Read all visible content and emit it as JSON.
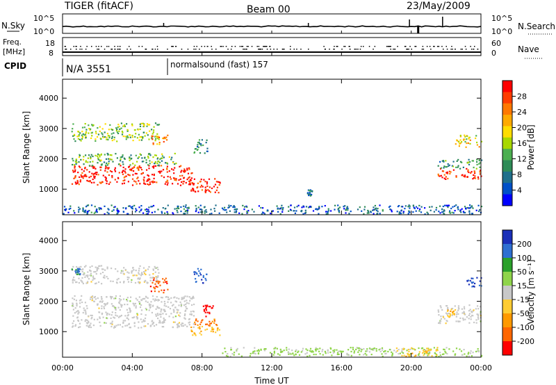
{
  "header": {
    "title": "TIGER (fitACF)",
    "beam": "Beam 00",
    "date": "23/May/2009"
  },
  "strips": {
    "nsky_label": "N.Sky",
    "nsearch_label": "N.Search",
    "nsky_ticks": [
      "10^5",
      "10^0"
    ],
    "nsearch_ticks": [
      "10^5",
      "10^0"
    ],
    "freq_label_line1": "Freq.",
    "freq_label_line2": "[MHz]",
    "freq_ticks": [
      "18",
      "8"
    ],
    "nave_label": "Nave",
    "nave_ticks": [
      "60",
      "0"
    ],
    "cpid_label": "CPID",
    "cpid_entries": [
      {
        "text": "N/A 3551",
        "start_hour": 0
      },
      {
        "text": "normalsound (fast) 157",
        "start_hour": 6
      }
    ]
  },
  "colorbars": {
    "power": {
      "label": "Power [dB]",
      "ticks": [
        "28",
        "24",
        "20",
        "16",
        "12",
        "8",
        "4"
      ],
      "colors": [
        "#ff0000",
        "#ff3c00",
        "#ff7800",
        "#ffaa00",
        "#ffdd00",
        "#a8d800",
        "#4caf50",
        "#2e8b57",
        "#1f6f8b",
        "#0050c8",
        "#0000ff"
      ]
    },
    "velocity": {
      "label": "Velocity [m s⁻¹]",
      "ticks": [
        "200",
        "100",
        "50",
        "15",
        "-15",
        "-50",
        "-100",
        "-200"
      ],
      "colors": [
        "#1a2fb8",
        "#2e6fd1",
        "#2aa02a",
        "#8fd44a",
        "#c8c8c8",
        "#ffcc33",
        "#ff9900",
        "#ff6600",
        "#ff0000"
      ]
    }
  },
  "chart_data": [
    {
      "type": "heatmap",
      "name": "Power",
      "ylabel": "Slant Range [km]",
      "xlabel": "Time UT",
      "ylim": [
        180,
        4600
      ],
      "yticks": [
        1000,
        2000,
        3000,
        4000
      ],
      "xlim_hours": [
        0,
        24
      ],
      "xticks": [
        "00:00",
        "04:00",
        "08:00",
        "12:00",
        "16:00",
        "20:00",
        "00:00"
      ],
      "colorbar_range_db": [
        0,
        30
      ],
      "regions": [
        {
          "t0": 0.5,
          "t1": 7.5,
          "r0": 1150,
          "r1": 1800,
          "value": 28
        },
        {
          "t0": 0.5,
          "t1": 6.5,
          "r0": 1800,
          "r1": 2200,
          "value": 12
        },
        {
          "t0": 0.5,
          "t1": 5.5,
          "r0": 2600,
          "r1": 3200,
          "value": 14
        },
        {
          "t0": 5.0,
          "t1": 6.0,
          "r0": 2500,
          "r1": 2800,
          "value": 22
        },
        {
          "t0": 7.3,
          "t1": 9.0,
          "r0": 900,
          "r1": 1400,
          "value": 27
        },
        {
          "t0": 7.5,
          "t1": 8.3,
          "r0": 2200,
          "r1": 2700,
          "value": 8
        },
        {
          "t0": 0.0,
          "t1": 24.0,
          "r0": 200,
          "r1": 500,
          "value": 6
        },
        {
          "t0": 21.5,
          "t1": 24.0,
          "r0": 1350,
          "r1": 1700,
          "value": 27
        },
        {
          "t0": 21.5,
          "t1": 24.0,
          "r0": 1700,
          "r1": 2000,
          "value": 10
        },
        {
          "t0": 22.5,
          "t1": 24.0,
          "r0": 2400,
          "r1": 2800,
          "value": 18
        },
        {
          "t0": 14.0,
          "t1": 14.3,
          "r0": 800,
          "r1": 1000,
          "value": 8
        }
      ]
    },
    {
      "type": "heatmap",
      "name": "Velocity",
      "ylabel": "Slant Range [km]",
      "xlabel": "Time UT",
      "ylim": [
        180,
        4600
      ],
      "yticks": [
        1000,
        2000,
        3000,
        4000
      ],
      "xlim_hours": [
        0,
        24
      ],
      "xticks": [
        "00:00",
        "04:00",
        "08:00",
        "12:00",
        "16:00",
        "20:00",
        "00:00"
      ],
      "colorbar_range_ms": [
        -250,
        250
      ],
      "regions": [
        {
          "t0": 0.5,
          "t1": 7.5,
          "r0": 1150,
          "r1": 2200,
          "value": 0
        },
        {
          "t0": 0.5,
          "t1": 5.5,
          "r0": 2600,
          "r1": 3200,
          "value": 0
        },
        {
          "t0": 5.0,
          "t1": 6.0,
          "r0": 2300,
          "r1": 2800,
          "value": -180
        },
        {
          "t0": 7.3,
          "t1": 9.0,
          "r0": 1200,
          "r1": 1450,
          "value": -150
        },
        {
          "t0": 7.3,
          "t1": 9.0,
          "r0": 900,
          "r1": 1200,
          "value": -70
        },
        {
          "t0": 8.0,
          "t1": 8.6,
          "r0": 1500,
          "r1": 1900,
          "value": -220
        },
        {
          "t0": 7.5,
          "t1": 8.3,
          "r0": 2600,
          "r1": 3100,
          "value": 180
        },
        {
          "t0": 0.5,
          "t1": 1.0,
          "r0": 2900,
          "r1": 3100,
          "value": 150
        },
        {
          "t0": 9.0,
          "t1": 24.0,
          "r0": 200,
          "r1": 500,
          "value": 40
        },
        {
          "t0": 19.0,
          "t1": 21.5,
          "r0": 200,
          "r1": 500,
          "value": -60
        },
        {
          "t0": 21.5,
          "t1": 24.0,
          "r0": 1300,
          "r1": 1900,
          "value": 0
        },
        {
          "t0": 22.0,
          "t1": 22.5,
          "r0": 1500,
          "r1": 1800,
          "value": -80
        },
        {
          "t0": 23.0,
          "t1": 24.0,
          "r0": 2500,
          "r1": 2800,
          "value": 200
        }
      ]
    }
  ]
}
